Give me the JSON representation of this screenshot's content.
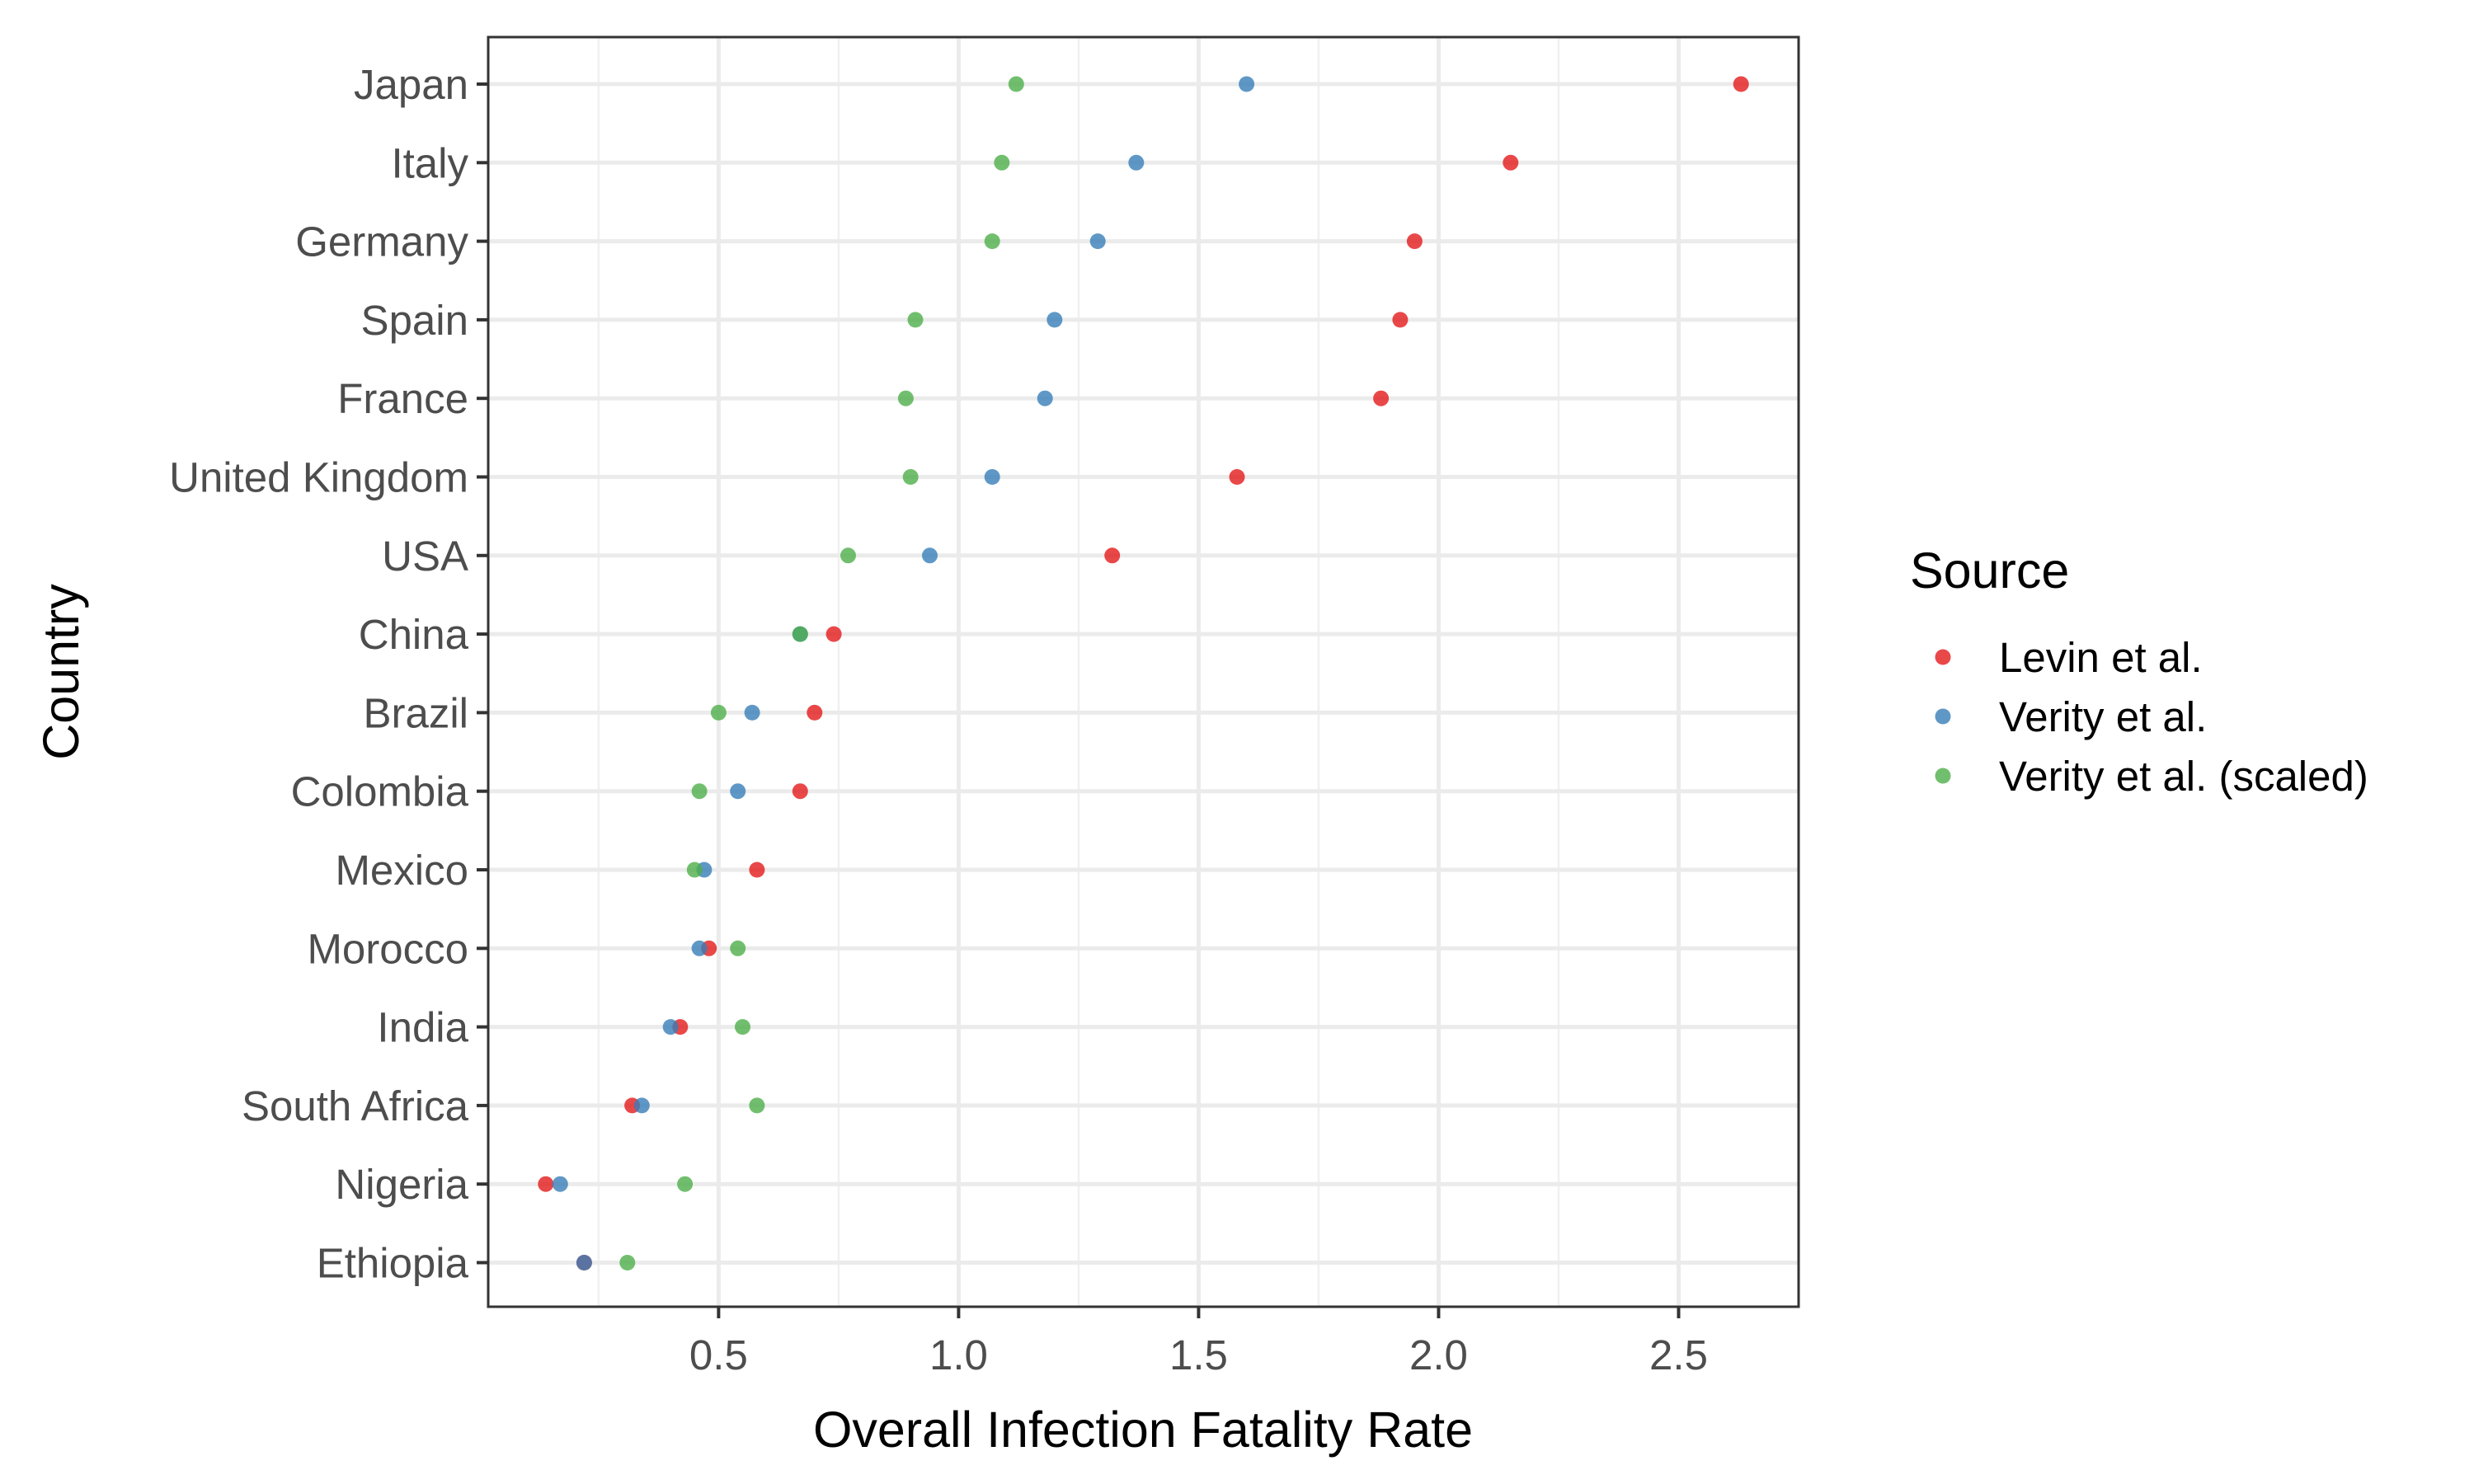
{
  "chart_data": {
    "type": "scatter",
    "title": "",
    "xlabel": "Overall Infection Fatality Rate",
    "ylabel": "Country",
    "xlim": [
      0.02,
      2.75
    ],
    "x_ticks": [
      0.5,
      1.0,
      1.5,
      2.0,
      2.5
    ],
    "x_tick_labels": [
      "0.5",
      "1.0",
      "1.5",
      "2.0",
      "2.5"
    ],
    "grid": true,
    "legend_position": "right",
    "legend_title": "Source",
    "categories": [
      "Japan",
      "Italy",
      "Germany",
      "Spain",
      "France",
      "United Kingdom",
      "USA",
      "China",
      "Brazil",
      "Colombia",
      "Mexico",
      "Morocco",
      "India",
      "South Africa",
      "Nigeria",
      "Ethiopia"
    ],
    "series": [
      {
        "name": "Levin et al.",
        "color": "#e41a1c",
        "values": [
          2.63,
          2.15,
          1.95,
          1.92,
          1.88,
          1.58,
          1.32,
          0.74,
          0.7,
          0.67,
          0.58,
          0.48,
          0.42,
          0.32,
          0.14,
          0.22
        ]
      },
      {
        "name": "Verity et al.",
        "color": "#377eb8",
        "values": [
          1.6,
          1.37,
          1.29,
          1.2,
          1.18,
          1.07,
          0.94,
          0.67,
          0.57,
          0.54,
          0.47,
          0.46,
          0.4,
          0.34,
          0.17,
          0.22
        ]
      },
      {
        "name": "Verity et al. (scaled)",
        "color": "#4daf4a",
        "values": [
          1.12,
          1.09,
          1.07,
          0.91,
          0.89,
          0.9,
          0.77,
          0.67,
          0.5,
          0.46,
          0.45,
          0.54,
          0.55,
          0.58,
          0.43,
          0.31
        ]
      }
    ]
  }
}
